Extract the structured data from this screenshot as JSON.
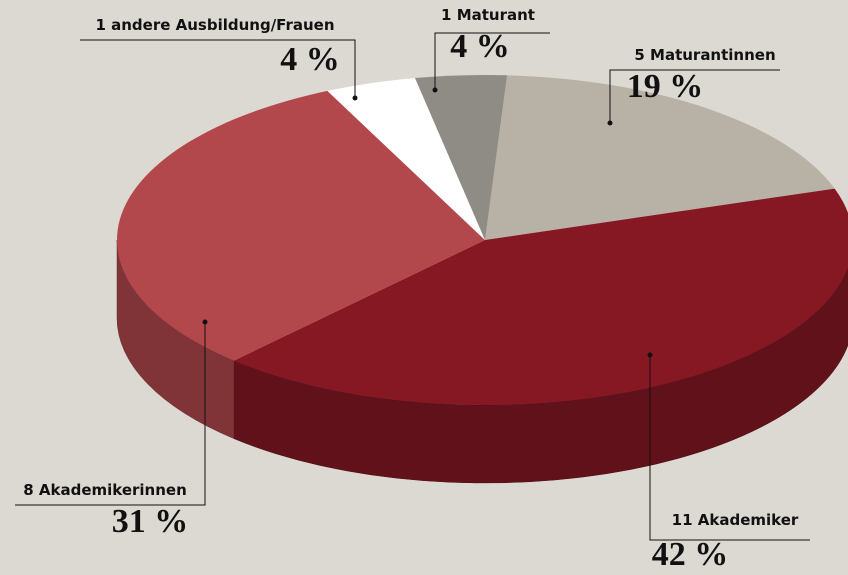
{
  "chart_data": {
    "type": "pie",
    "categories": [
      "5 Maturantinnen",
      "11 Akademiker",
      "8 Akademikerinnen",
      "1 andere Ausbildung/Frauen",
      "1 Maturant"
    ],
    "values": [
      19,
      42,
      31,
      4,
      4
    ],
    "value_labels": [
      "19 %",
      "42 %",
      "31 %",
      "4 %",
      "4 %"
    ],
    "colors": [
      "#b8b1a6",
      "#861823",
      "#b2484c",
      "#ffffff",
      "#8f8b85"
    ]
  }
}
